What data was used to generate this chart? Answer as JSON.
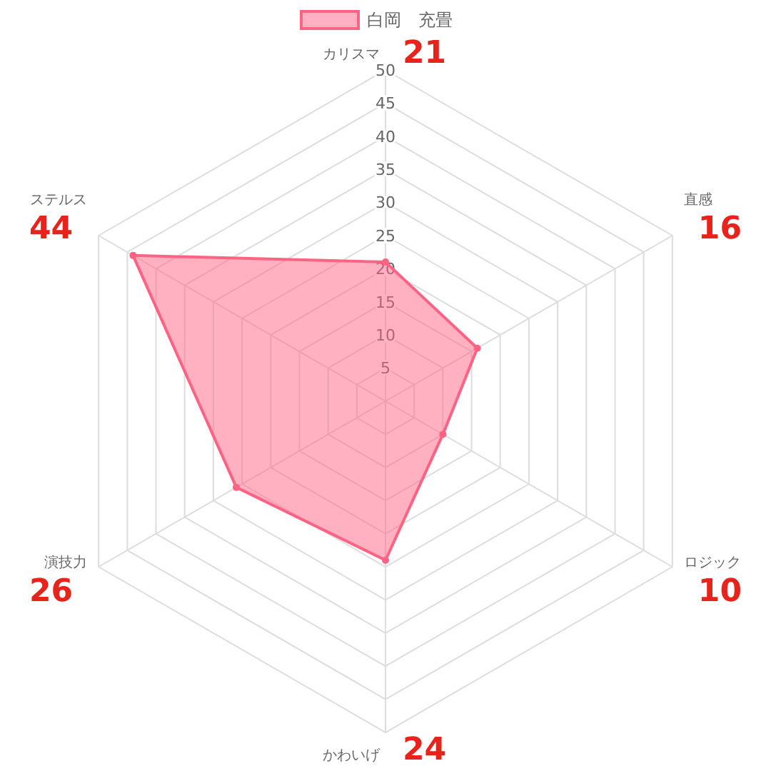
{
  "chart_data": {
    "type": "radar",
    "categories": [
      "カリスマ",
      "直感",
      "ロジック",
      "かわいげ",
      "演技力",
      "ステルス"
    ],
    "series": [
      {
        "name": "白岡　充畳",
        "color": "#ff6384",
        "values": [
          21,
          16,
          10,
          24,
          26,
          44
        ]
      }
    ],
    "annotations": [
      "21",
      "16",
      "10",
      "24",
      "26",
      "44"
    ],
    "ylim": [
      0,
      50
    ],
    "yticks": [
      5,
      10,
      15,
      20,
      25,
      30,
      35,
      40,
      45,
      50
    ],
    "grid": true,
    "legend": "top",
    "marker": "circle"
  }
}
